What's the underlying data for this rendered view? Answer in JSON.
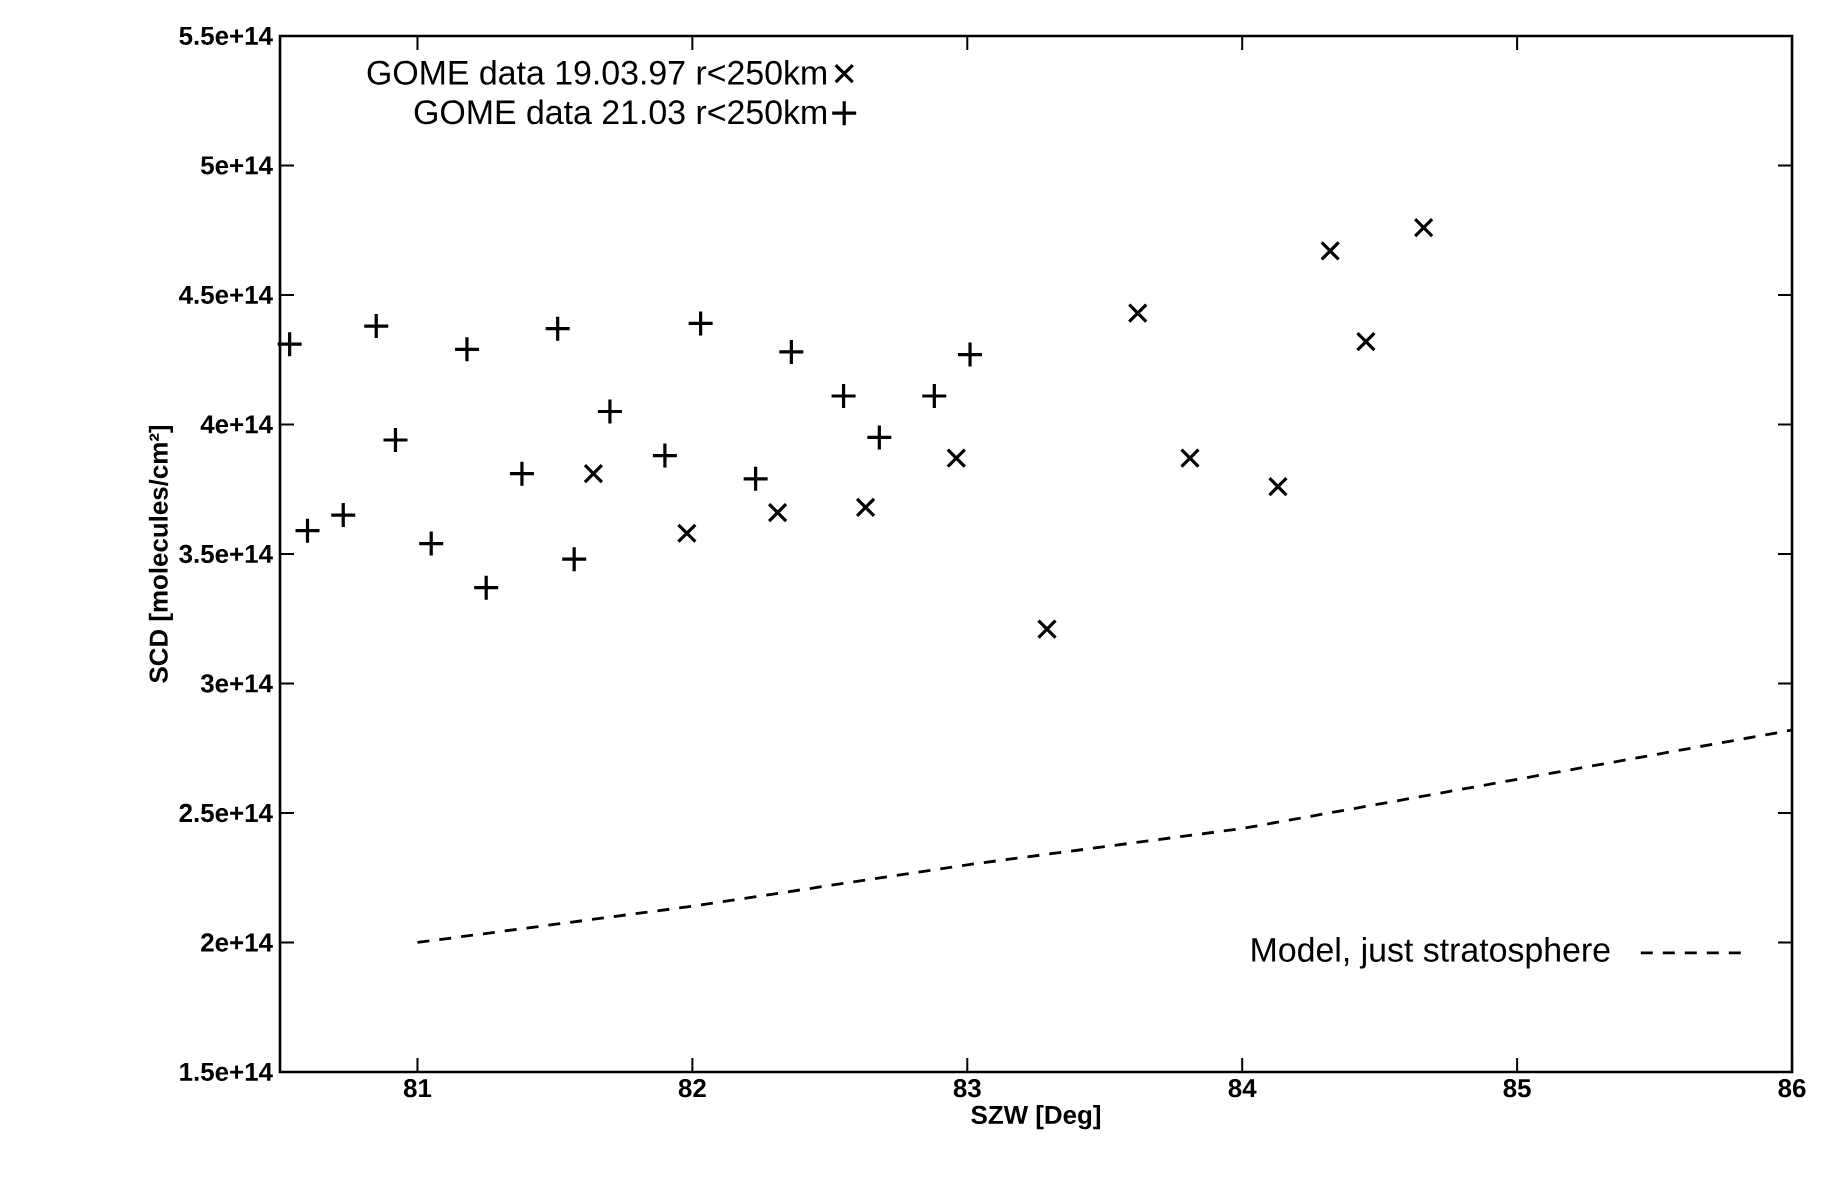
{
  "chart_data": {
    "type": "scatter",
    "xlabel": "SZW [Deg]",
    "ylabel": "SCD [molecules/cm²]",
    "xlim": [
      80.5,
      86
    ],
    "ylim": [
      150000000000000.0,
      550000000000000.0
    ],
    "xticks": [
      81,
      82,
      83,
      84,
      85,
      86
    ],
    "yticks": [
      {
        "value": 150000000000000.0,
        "label": "1.5e+14"
      },
      {
        "value": 200000000000000.0,
        "label": "2e+14"
      },
      {
        "value": 250000000000000.0,
        "label": "2.5e+14"
      },
      {
        "value": 300000000000000.0,
        "label": "3e+14"
      },
      {
        "value": 350000000000000.0,
        "label": "3.5e+14"
      },
      {
        "value": 400000000000000.0,
        "label": "4e+14"
      },
      {
        "value": 450000000000000.0,
        "label": "4.5e+14"
      },
      {
        "value": 500000000000000.0,
        "label": "5e+14"
      },
      {
        "value": 550000000000000.0,
        "label": "5.5e+14"
      }
    ],
    "legend": "top left",
    "grid": false,
    "series": [
      {
        "name": "GOME data 19.03.97  r<250km",
        "marker": "cross",
        "color": "#000000",
        "x": [
          81.64,
          81.98,
          82.31,
          82.63,
          82.96,
          83.29,
          83.62,
          83.81,
          84.13,
          84.32,
          84.45,
          84.66
        ],
        "values": [
          381000000000000.0,
          358000000000000.0,
          366000000000000.0,
          368000000000000.0,
          387000000000000.0,
          321000000000000.0,
          443000000000000.0,
          387000000000000.0,
          376000000000000.0,
          467000000000000.0,
          432000000000000.0,
          476000000000000.0
        ]
      },
      {
        "name": "GOME data 21.03  r<250km",
        "marker": "plus",
        "color": "#000000",
        "x": [
          80.535,
          80.6,
          80.73,
          80.85,
          80.92,
          81.05,
          81.18,
          81.25,
          81.38,
          81.51,
          81.57,
          81.7,
          81.9,
          82.03,
          82.23,
          82.36,
          82.55,
          82.68,
          82.88,
          83.01
        ],
        "values": [
          431000000000000.0,
          359000000000000.0,
          365000000000000.0,
          438000000000000.0,
          394000000000000.0,
          354000000000000.0,
          429000000000000.0,
          337000000000000.0,
          381000000000000.0,
          437000000000000.0,
          348000000000000.0,
          405000000000000.0,
          388000000000000.0,
          439000000000000.0,
          379000000000000.0,
          428000000000000.0,
          411000000000000.0,
          395000000000000.0,
          411000000000000.0,
          427000000000000.0
        ]
      },
      {
        "name": "Model, just stratosphere",
        "type": "line",
        "line_style": "dashed",
        "marker": "none",
        "color": "#000000",
        "x": [
          81,
          82,
          83,
          84,
          85,
          86
        ],
        "values": [
          200000000000000.0,
          214000000000000.0,
          230000000000000.0,
          244000000000000.0,
          263000000000000.0,
          282000000000000.0
        ]
      }
    ]
  }
}
